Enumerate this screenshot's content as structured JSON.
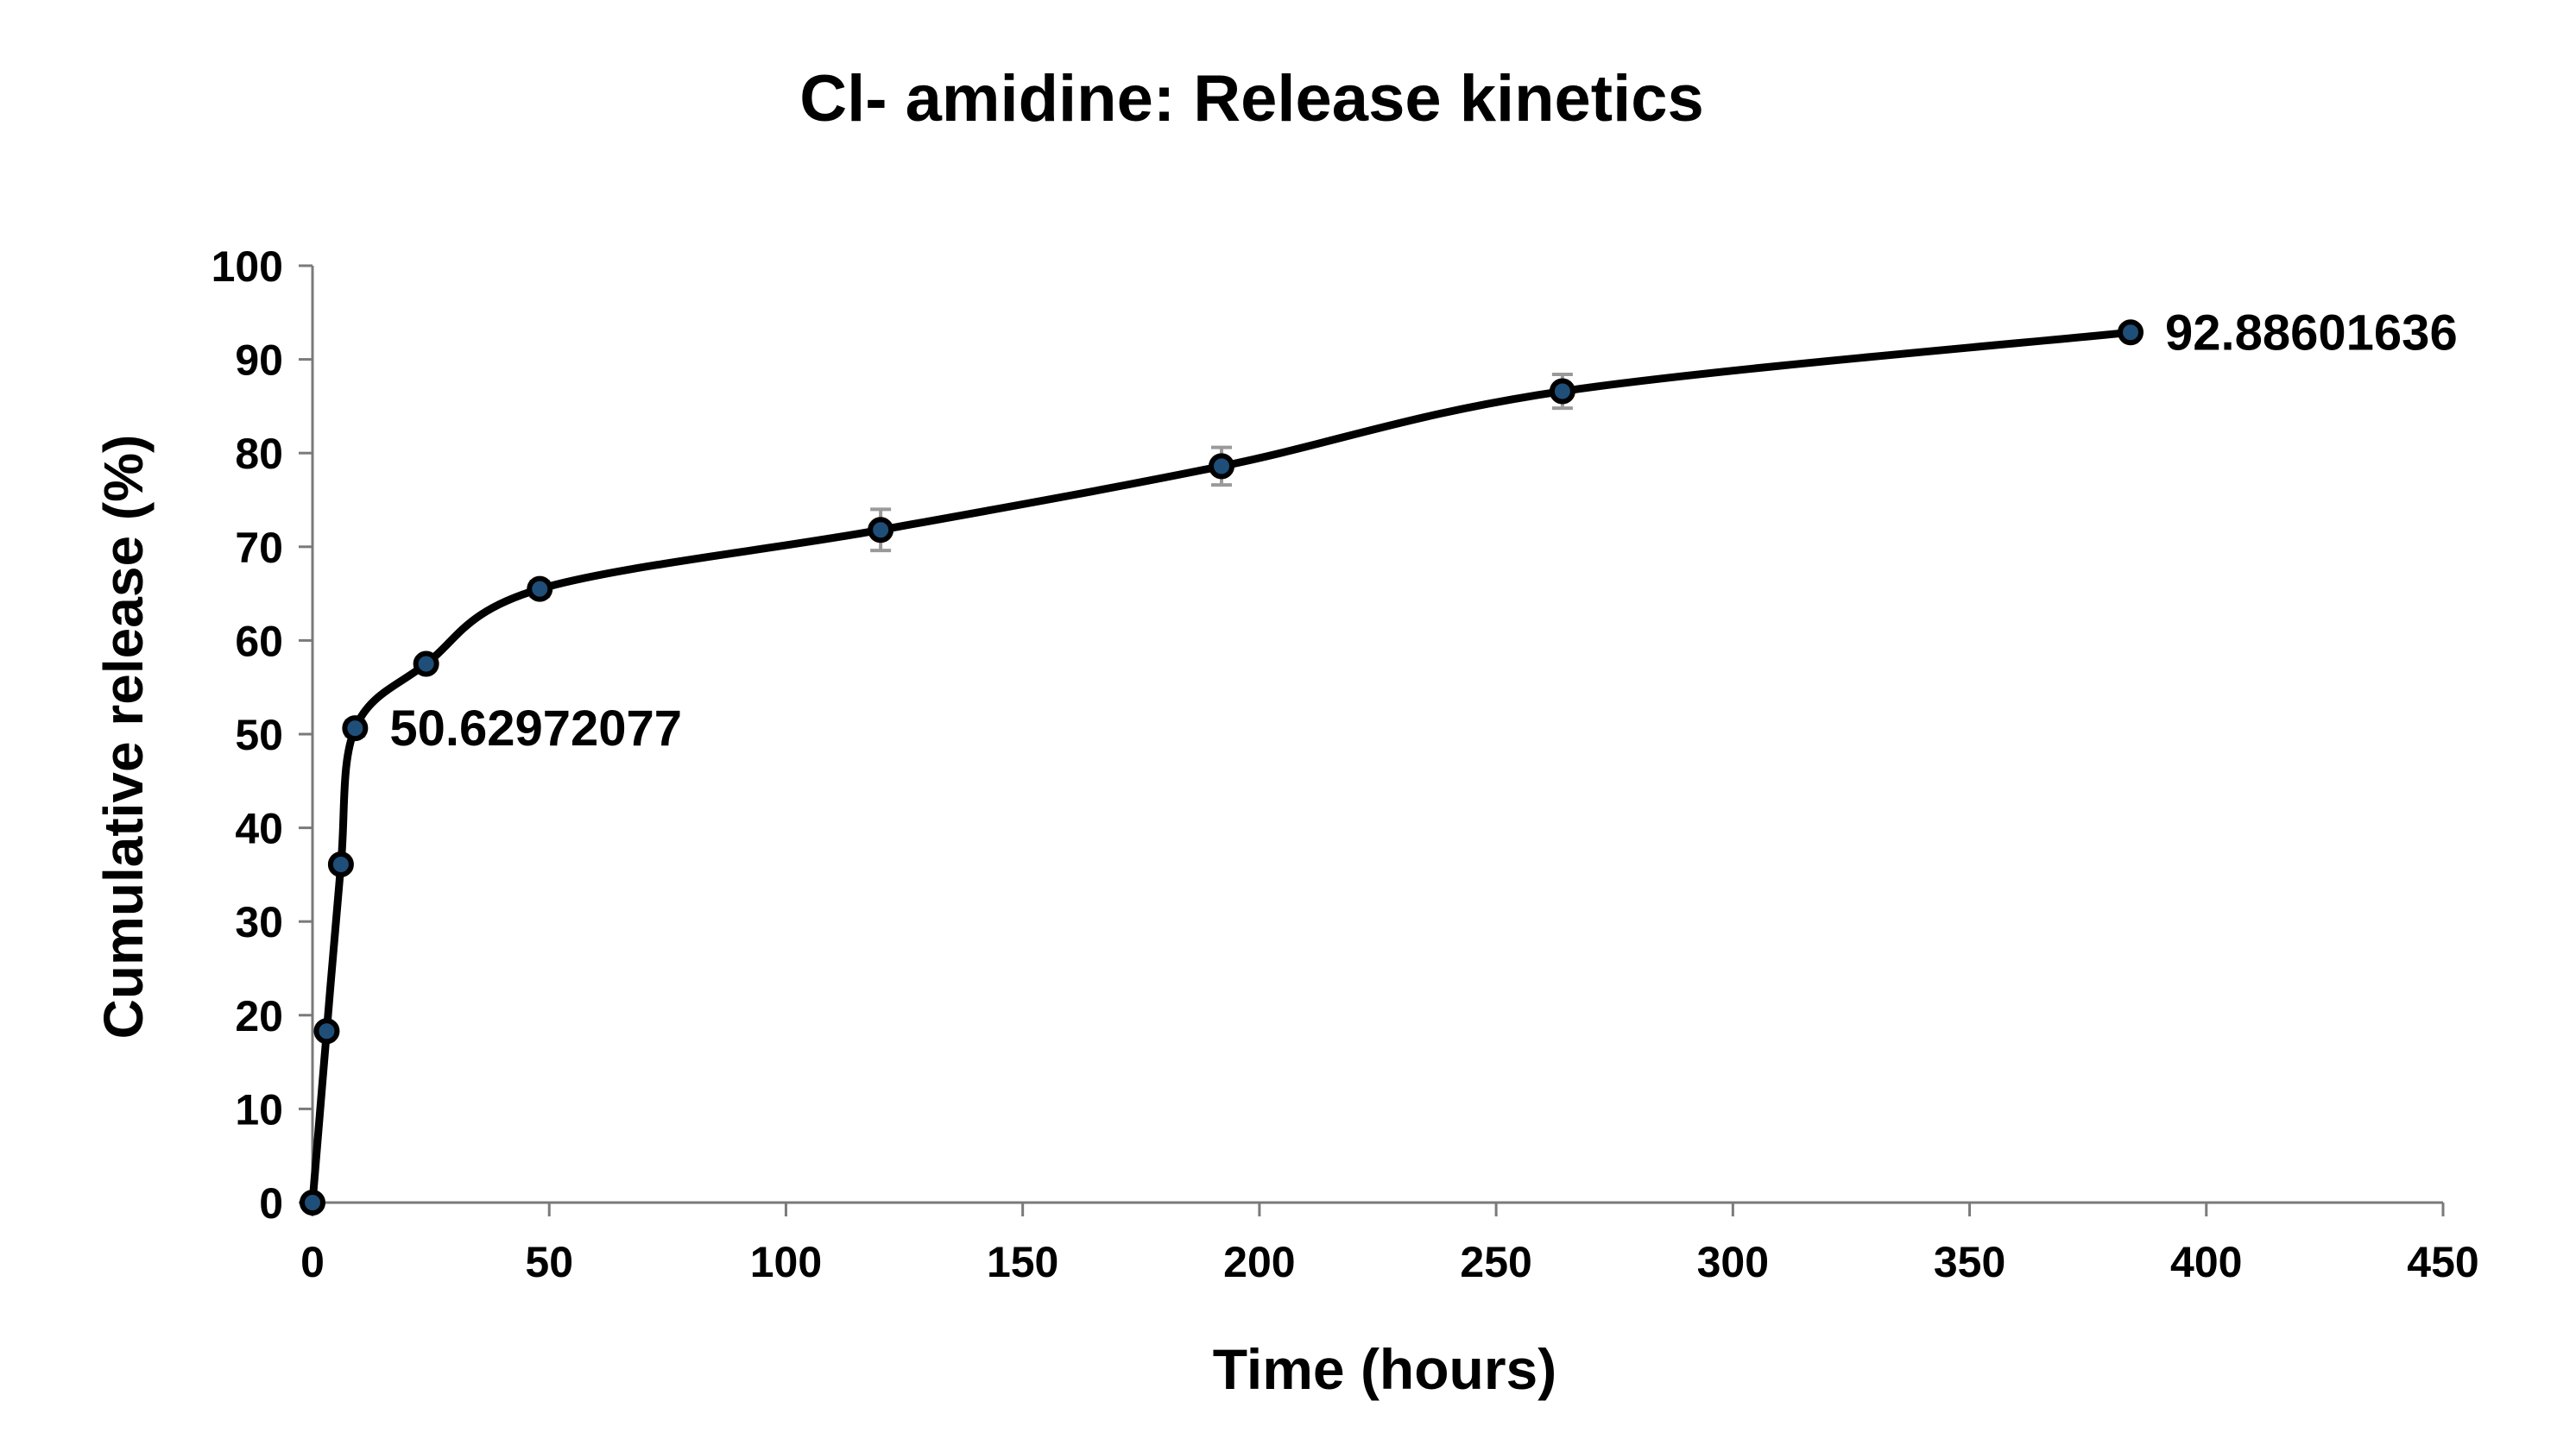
{
  "chart_data": {
    "type": "line",
    "title": "Cl- amidine: Release kinetics",
    "xlabel": "Time (hours)",
    "ylabel": "Cumulative release (%)",
    "xlim": [
      0,
      450
    ],
    "ylim": [
      0,
      100
    ],
    "x_ticks": [
      0,
      50,
      100,
      150,
      200,
      250,
      300,
      350,
      400,
      450
    ],
    "y_ticks": [
      0,
      10,
      20,
      30,
      40,
      50,
      60,
      70,
      80,
      90,
      100
    ],
    "grid": false,
    "legend": "none",
    "smoothed": true,
    "line_color": "#000000",
    "marker_fill": "#1f4e79",
    "errorbar_color": "#9a9a9a",
    "series": [
      {
        "x": [
          0,
          3,
          6,
          9,
          24,
          48,
          120,
          192,
          264,
          384
        ],
        "y": [
          0,
          18.3,
          36.1,
          50.62972077,
          57.5,
          65.5,
          71.8,
          78.6,
          86.6,
          92.88601636
        ],
        "error": [
          0,
          0.5,
          0.6,
          0.8,
          0.7,
          0.8,
          2.2,
          2.0,
          1.8,
          0.6
        ]
      }
    ],
    "data_labels": [
      {
        "x": 9,
        "y": 50.62972077,
        "text": "50.62972077",
        "position": "right"
      },
      {
        "x": 384,
        "y": 92.88601636,
        "text": "92.88601636",
        "position": "right"
      }
    ]
  }
}
